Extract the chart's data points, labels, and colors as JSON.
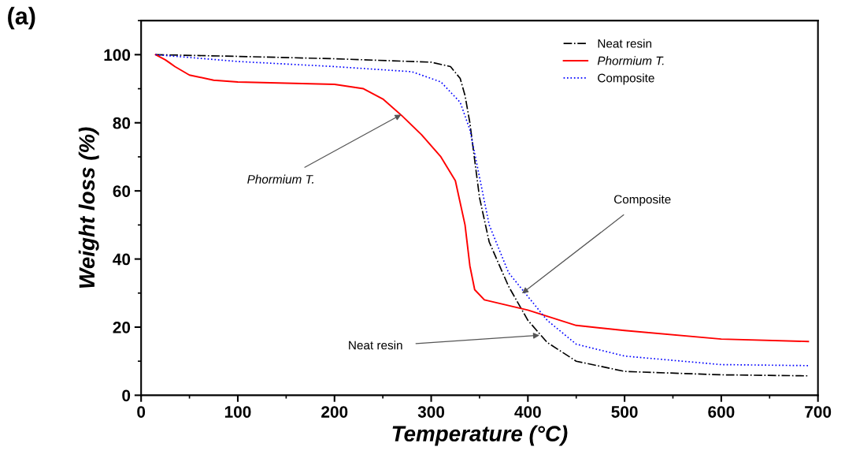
{
  "chart_data": {
    "type": "line",
    "title": "(a)",
    "xlabel": "Temperature (°C)",
    "ylabel": "Weight loss (%)",
    "xlim": [
      0,
      700
    ],
    "xticks": [
      0,
      100,
      200,
      300,
      400,
      500,
      600,
      700
    ],
    "ylim": [
      0,
      110
    ],
    "yticks": [
      0,
      20,
      40,
      60,
      80,
      100
    ],
    "grid": false,
    "legend": "top right",
    "series": [
      {
        "name": "Neat resin",
        "color": "#000000",
        "line_style": "dashdot",
        "x": [
          15,
          100,
          200,
          300,
          320,
          330,
          335,
          340,
          350,
          360,
          380,
          400,
          420,
          450,
          500,
          600,
          690
        ],
        "values": [
          100,
          99.5,
          98.8,
          97.8,
          96.5,
          93,
          88,
          80,
          58,
          45,
          32,
          22,
          15.5,
          10,
          7,
          6,
          5.7
        ]
      },
      {
        "name": "Phormium T.",
        "color": "#ff0000",
        "line_style": "solid",
        "x": [
          15,
          25,
          30,
          35,
          50,
          75,
          100,
          200,
          230,
          250,
          270,
          290,
          310,
          325,
          335,
          340,
          345,
          355,
          400,
          450,
          500,
          600,
          690
        ],
        "values": [
          100,
          98.5,
          97.5,
          96.5,
          94,
          92.5,
          92,
          91.3,
          90,
          87,
          82,
          76.5,
          70,
          63,
          50,
          38,
          31,
          28,
          25,
          20.5,
          19,
          16.5,
          15.8
        ]
      },
      {
        "name": "Composite",
        "color": "#0000ff",
        "line_style": "dotted",
        "x": [
          15,
          100,
          200,
          280,
          310,
          330,
          340,
          350,
          360,
          380,
          400,
          420,
          450,
          500,
          600,
          690
        ],
        "values": [
          100,
          98,
          96.5,
          95,
          92,
          86,
          78,
          64,
          50,
          36,
          29,
          22,
          15,
          11.5,
          9,
          8.7
        ]
      }
    ],
    "annotations": [
      {
        "text": "Phormium T.",
        "x": 269,
        "y": 82.4
      },
      {
        "text": "Composite",
        "x": 394,
        "y": 29.9
      },
      {
        "text": "Neat resin",
        "x": 412,
        "y": 17.6
      }
    ]
  }
}
